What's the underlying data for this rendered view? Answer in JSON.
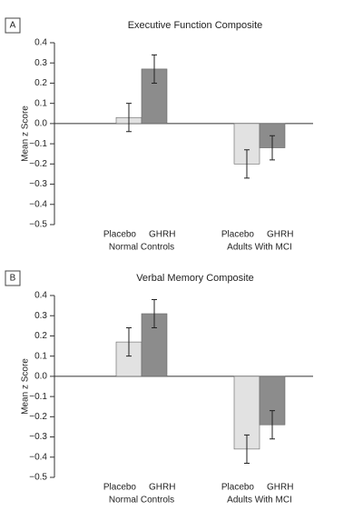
{
  "chart_data": [
    {
      "type": "bar",
      "panel": "A",
      "title": "Executive Function Composite",
      "ylabel": "Mean z Score",
      "categories": [
        "Normal Controls",
        "Adults With MCI"
      ],
      "series": [
        {
          "name": "Placebo",
          "color": "#e2e2e2",
          "values": [
            0.03,
            -0.2
          ],
          "errors": [
            0.07,
            0.07
          ]
        },
        {
          "name": "GHRH",
          "color": "#8c8c8c",
          "values": [
            0.27,
            -0.12
          ],
          "errors": [
            0.07,
            0.06
          ]
        }
      ],
      "ylim": [
        -0.5,
        0.4
      ],
      "yticks": [
        0.4,
        0.3,
        0.2,
        0.1,
        {
          "value": 0,
          "label": "0.0"
        },
        {
          "value": -0.1,
          "label": "−0.1"
        },
        {
          "value": -0.2,
          "label": "−0.2"
        },
        {
          "value": -0.3,
          "label": "−0.3"
        },
        {
          "value": -0.4,
          "label": "−0.4"
        },
        {
          "value": -0.5,
          "label": "−0.5"
        }
      ]
    },
    {
      "type": "bar",
      "panel": "B",
      "title": "Verbal Memory Composite",
      "ylabel": "Mean z Score",
      "categories": [
        "Normal Controls",
        "Adults With MCI"
      ],
      "series": [
        {
          "name": "Placebo",
          "color": "#e2e2e2",
          "values": [
            0.17,
            -0.36
          ],
          "errors": [
            0.07,
            0.07
          ]
        },
        {
          "name": "GHRH",
          "color": "#8c8c8c",
          "values": [
            0.31,
            -0.24
          ],
          "errors": [
            0.07,
            0.07
          ]
        }
      ],
      "ylim": [
        -0.5,
        0.4
      ],
      "yticks": [
        0.4,
        0.3,
        0.2,
        0.1,
        {
          "value": 0,
          "label": "0.0"
        },
        {
          "value": -0.1,
          "label": "−0.1"
        },
        {
          "value": -0.2,
          "label": "−0.2"
        },
        {
          "value": -0.3,
          "label": "−0.3"
        },
        {
          "value": -0.4,
          "label": "−0.4"
        },
        {
          "value": -0.5,
          "label": "−0.5"
        }
      ]
    }
  ]
}
